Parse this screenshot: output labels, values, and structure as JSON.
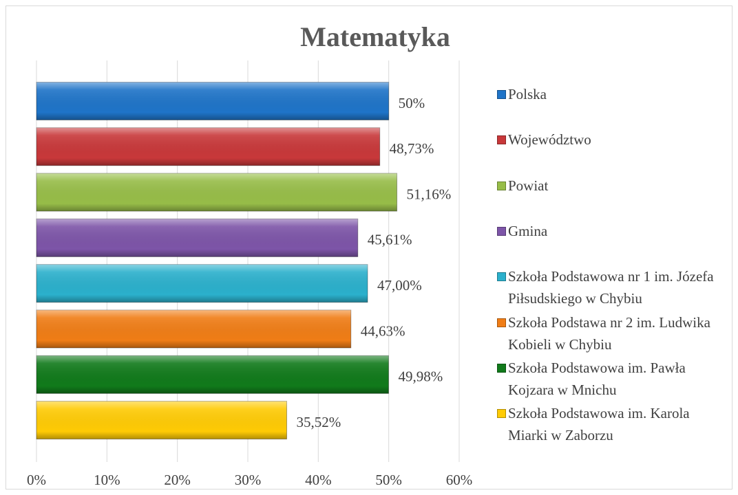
{
  "chart_data": {
    "type": "bar",
    "orientation": "horizontal",
    "title": "Matematyka",
    "series": [
      {
        "name": "Polska",
        "color": "#1f74c8",
        "values": [
          50
        ],
        "value_labels": [
          "50%"
        ]
      },
      {
        "name": "Województwo",
        "color": "#c8383a",
        "values": [
          48.73
        ],
        "value_labels": [
          "48,73%"
        ]
      },
      {
        "name": "Powiat",
        "color": "#97bd48",
        "values": [
          51.16
        ],
        "value_labels": [
          "51,16%"
        ]
      },
      {
        "name": "Gmina",
        "color": "#7d55a8",
        "values": [
          45.61
        ],
        "value_labels": [
          "45,61%"
        ]
      },
      {
        "name": "Szkoła Podstawowa nr 1 im. Józefa Piłsudskiego w Chybiu",
        "color": "#2bb0cc",
        "values": [
          47
        ],
        "value_labels": [
          "47,00%"
        ]
      },
      {
        "name": "Szkoła Podstawa nr 2 im. Ludwika Kobieli w Chybiu",
        "color": "#f07d16",
        "values": [
          44.63
        ],
        "value_labels": [
          "44,63%"
        ]
      },
      {
        "name": "Szkoła Podstawowa im. Pawła Kojzara w Mnichu",
        "color": "#117a1b",
        "values": [
          49.98
        ],
        "value_labels": [
          "49,98%"
        ]
      },
      {
        "name": "Szkoła Podstawowa im. Karola Miarki w Zaborzu",
        "color": "#ffcb05",
        "values": [
          35.52
        ],
        "value_labels": [
          "35,52%"
        ]
      }
    ],
    "xlim": [
      0,
      60
    ],
    "xticks": [
      {
        "value": 0,
        "label": "0%"
      },
      {
        "value": 10,
        "label": "10%"
      },
      {
        "value": 20,
        "label": "20%"
      },
      {
        "value": 30,
        "label": "30%"
      },
      {
        "value": 40,
        "label": "40%"
      },
      {
        "value": 50,
        "label": "50%"
      },
      {
        "value": 60,
        "label": "60%"
      }
    ],
    "grid": true,
    "legend": "right"
  }
}
